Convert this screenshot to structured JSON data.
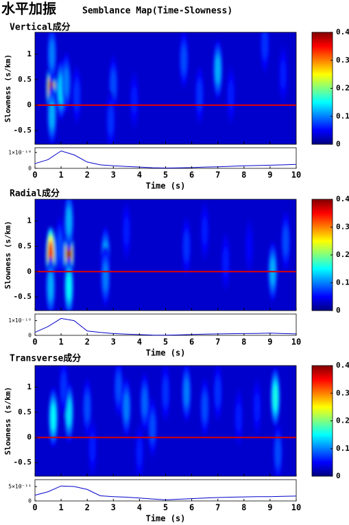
{
  "title": "水平加振",
  "subtitle": "Semblance Map(Time-Slowness)",
  "chart_data": [
    {
      "type": "heatmap",
      "title": "Vertical成分",
      "ylabel": "Slowness (s/km)",
      "xlabel": "Time (s)",
      "xlim": [
        0,
        10
      ],
      "xticks": [
        0,
        1,
        2,
        3,
        4,
        5,
        6,
        7,
        8,
        9,
        10
      ],
      "ylim": [
        -0.77,
        1.43
      ],
      "yticks": [
        -0.5,
        0,
        0.5,
        1
      ],
      "clim": [
        0,
        0.4
      ],
      "cticks": [
        0,
        0.1,
        0.2,
        0.3,
        0.4
      ],
      "colormap": "jet",
      "hline": 0,
      "hline_color": "#e00000",
      "background": 0.03,
      "peaks": [
        {
          "time": 0.62,
          "slowness": 0.3,
          "semblance": 0.4
        },
        {
          "time": 0.65,
          "slowness": -0.2,
          "semblance": 0.12
        },
        {
          "time": 0.65,
          "slowness": 1.0,
          "semblance": 0.1
        },
        {
          "time": 1.0,
          "slowness": 0.3,
          "semblance": 0.14
        },
        {
          "time": 1.2,
          "slowness": 0.45,
          "semblance": 0.1
        },
        {
          "time": 1.6,
          "slowness": 0.2,
          "semblance": 0.07
        },
        {
          "time": 3.0,
          "slowness": 0.4,
          "semblance": 0.08
        },
        {
          "time": 2.9,
          "slowness": -0.3,
          "semblance": 0.07
        },
        {
          "time": 3.8,
          "slowness": 0.1,
          "semblance": 0.06
        },
        {
          "time": 5.7,
          "slowness": 0.9,
          "semblance": 0.08
        },
        {
          "time": 6.3,
          "slowness": 0.2,
          "semblance": 0.07
        },
        {
          "time": 7.0,
          "slowness": 0.7,
          "semblance": 0.12
        },
        {
          "time": 7.5,
          "slowness": 0.2,
          "semblance": 0.06
        },
        {
          "time": 8.8,
          "slowness": 1.2,
          "semblance": 0.07
        },
        {
          "time": 9.5,
          "slowness": 0.6,
          "semblance": 0.06
        }
      ],
      "envelope": {
        "color": "#0000cc",
        "x": [
          0,
          0.5,
          1,
          1.5,
          2,
          2.5,
          3,
          3.5,
          4,
          4.5,
          5,
          5.5,
          6,
          6.5,
          7,
          7.5,
          8,
          8.5,
          9,
          9.5,
          10
        ],
        "values": [
          3e-11,
          5.5e-11,
          1.1e-10,
          8.5e-11,
          4e-11,
          2.2e-11,
          1.6e-11,
          1.2e-11,
          8e-12,
          4e-12,
          2e-12,
          3e-12,
          5e-12,
          8e-12,
          1e-11,
          1.3e-11,
          1.6e-11,
          1.8e-11,
          2e-11,
          2.2e-11,
          2.5e-11
        ],
        "ylim": [
          0,
          1.3e-10
        ],
        "yticks": [
          0,
          {
            "value": 1e-10,
            "label": "1×10⁻¹⁰"
          }
        ]
      }
    },
    {
      "type": "heatmap",
      "title": "Radial成分",
      "ylabel": "Slowness (s/km)",
      "xlabel": "Time (s)",
      "xlim": [
        0,
        10
      ],
      "xticks": [
        0,
        1,
        2,
        3,
        4,
        5,
        6,
        7,
        8,
        9,
        10
      ],
      "ylim": [
        -0.77,
        1.43
      ],
      "yticks": [
        -0.5,
        0,
        0.5,
        1
      ],
      "clim": [
        0,
        0.4
      ],
      "cticks": [
        0,
        0.1,
        0.2,
        0.3,
        0.4
      ],
      "colormap": "jet",
      "hline": 0,
      "hline_color": "#e00000",
      "background": 0.03,
      "peaks": [
        {
          "time": 0.6,
          "slowness": 0.3,
          "semblance": 0.36
        },
        {
          "time": 0.6,
          "slowness": -0.3,
          "semblance": 0.12
        },
        {
          "time": 1.3,
          "slowness": 0.35,
          "semblance": 0.4
        },
        {
          "time": 1.3,
          "slowness": -0.3,
          "semblance": 0.15
        },
        {
          "time": 1.3,
          "slowness": 1.0,
          "semblance": 0.12
        },
        {
          "time": 0.95,
          "slowness": 0.5,
          "semblance": 0.08
        },
        {
          "time": 2.7,
          "slowness": 0.3,
          "semblance": 0.12
        },
        {
          "time": 2.7,
          "slowness": -0.1,
          "semblance": 0.1
        },
        {
          "time": 3.5,
          "slowness": 0.8,
          "semblance": 0.06
        },
        {
          "time": 5.8,
          "slowness": 0.5,
          "semblance": 0.07
        },
        {
          "time": 6.5,
          "slowness": 0.8,
          "semblance": 0.06
        },
        {
          "time": 7.3,
          "slowness": 0.2,
          "semblance": 0.06
        },
        {
          "time": 8.2,
          "slowness": 0.5,
          "semblance": 0.05
        },
        {
          "time": 9.1,
          "slowness": 0.0,
          "semblance": 0.12
        },
        {
          "time": 9.6,
          "slowness": 0.6,
          "semblance": 0.08
        }
      ],
      "envelope": {
        "color": "#0000cc",
        "x": [
          0,
          0.5,
          1,
          1.5,
          2,
          2.5,
          3,
          3.5,
          4,
          4.5,
          5,
          5.5,
          6,
          6.5,
          7,
          7.5,
          8,
          8.5,
          9,
          9.5,
          10
        ],
        "values": [
          2e-11,
          6e-11,
          1.15e-10,
          1e-10,
          3e-11,
          2e-11,
          1.2e-11,
          8e-12,
          5e-12,
          2e-12,
          1e-12,
          3e-12,
          6e-12,
          8e-12,
          1e-11,
          1.1e-11,
          1.2e-11,
          1.3e-11,
          1.5e-11,
          1.2e-11,
          1e-11
        ],
        "ylim": [
          0,
          1.45e-10
        ],
        "yticks": [
          0,
          {
            "value": 1e-10,
            "label": "1×10⁻¹⁰"
          }
        ]
      }
    },
    {
      "type": "heatmap",
      "title": "Transverse成分",
      "ylabel": "Slowness (s/km)",
      "xlabel": "Time (s)",
      "xlim": [
        0,
        10
      ],
      "xticks": [
        0,
        1,
        2,
        3,
        4,
        5,
        6,
        7,
        8,
        9,
        10
      ],
      "ylim": [
        -0.77,
        1.43
      ],
      "yticks": [
        -0.5,
        0,
        0.5,
        1
      ],
      "clim": [
        0,
        0.4
      ],
      "cticks": [
        0,
        0.1,
        0.2,
        0.3,
        0.4
      ],
      "colormap": "jet",
      "hline": 0,
      "hline_color": "#e00000",
      "background": 0.03,
      "peaks": [
        {
          "time": 0.7,
          "slowness": 0.4,
          "semblance": 0.15
        },
        {
          "time": 1.3,
          "slowness": 0.5,
          "semblance": 0.14
        },
        {
          "time": 1.1,
          "slowness": 1.0,
          "semblance": 0.07
        },
        {
          "time": 2.0,
          "slowness": 0.6,
          "semblance": 0.08
        },
        {
          "time": 3.2,
          "slowness": 1.0,
          "semblance": 0.08
        },
        {
          "time": 3.5,
          "slowness": 0.6,
          "semblance": 0.1
        },
        {
          "time": 4.2,
          "slowness": 0.7,
          "semblance": 0.09
        },
        {
          "time": 4.5,
          "slowness": 0.2,
          "semblance": 0.08
        },
        {
          "time": 5.0,
          "slowness": 0.9,
          "semblance": 0.07
        },
        {
          "time": 5.8,
          "slowness": 0.9,
          "semblance": 0.1
        },
        {
          "time": 6.5,
          "slowness": 0.6,
          "semblance": 0.08
        },
        {
          "time": 7.0,
          "slowness": 0.9,
          "semblance": 0.07
        },
        {
          "time": 7.8,
          "slowness": 0.4,
          "semblance": 0.06
        },
        {
          "time": 8.5,
          "slowness": 0.6,
          "semblance": 0.06
        },
        {
          "time": 9.2,
          "slowness": 0.8,
          "semblance": 0.16
        },
        {
          "time": 9.3,
          "slowness": -0.3,
          "semblance": 0.08
        },
        {
          "time": 4.0,
          "slowness": -0.3,
          "semblance": 0.06
        },
        {
          "time": 2.2,
          "slowness": -0.2,
          "semblance": 0.06
        }
      ],
      "envelope": {
        "color": "#0000cc",
        "x": [
          0,
          0.5,
          1,
          1.5,
          2,
          2.5,
          3,
          3.5,
          4,
          4.5,
          5,
          5.5,
          6,
          6.5,
          7,
          7.5,
          8,
          8.5,
          9,
          9.5,
          10
        ],
        "values": [
          2e-11,
          3.2e-11,
          5.2e-11,
          5e-11,
          4e-11,
          1.8e-11,
          1.5e-11,
          1.3e-11,
          1e-11,
          7e-12,
          4e-12,
          6e-12,
          8e-12,
          1e-11,
          1.2e-11,
          1.3e-11,
          1.4e-11,
          1.5e-11,
          1.5e-11,
          1.6e-11,
          1.7e-11
        ],
        "ylim": [
          0,
          7.4e-11
        ],
        "yticks": [
          0,
          {
            "value": 5e-11,
            "label": "5×10⁻¹¹"
          }
        ]
      }
    }
  ]
}
